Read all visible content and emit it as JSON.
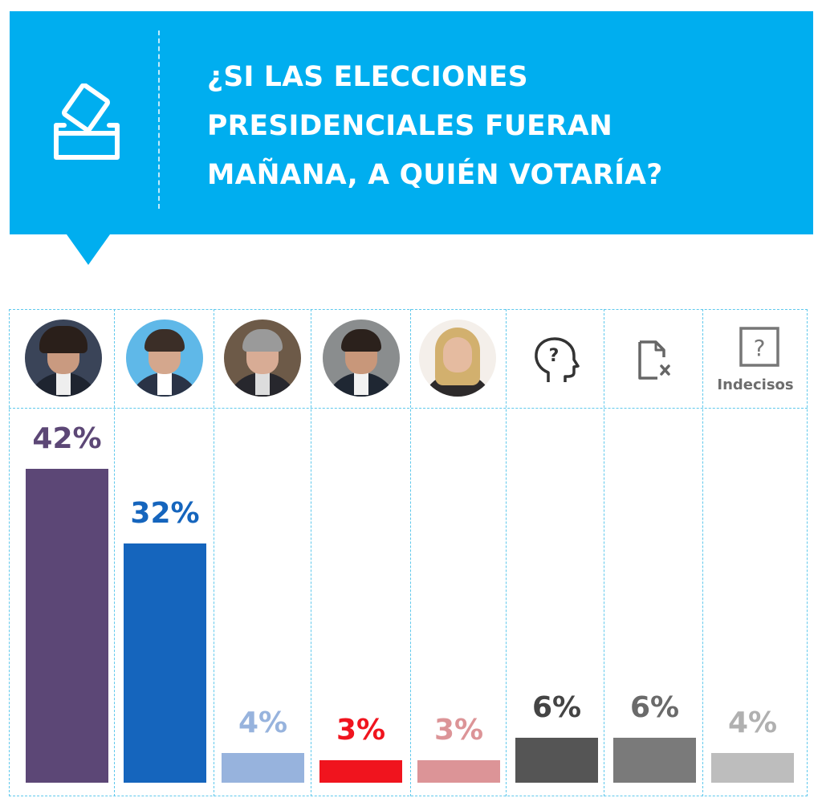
{
  "title_lines": [
    "¿SI LAS ELECCIONES",
    "PRESIDENCIALES FUERAN",
    "MAÑANA, A QUIÉN VOTARÍA?"
  ],
  "colors": {
    "banner": "#00aeef",
    "grid": "#5fc8ec"
  },
  "chart_data": {
    "type": "bar",
    "title": "¿SI LAS ELECCIONES PRESIDENCIALES FUERAN MAÑANA, A QUIÉN VOTARÍA?",
    "ylim": [
      0,
      45
    ],
    "value_labels": [
      "42%",
      "32%",
      "4%",
      "3%",
      "3%",
      "6%",
      "6%",
      "4%"
    ],
    "values": [
      42,
      32,
      4,
      3,
      3,
      6,
      6,
      4
    ],
    "bar_colors": [
      "#5c4776",
      "#1565bd",
      "#97b3dd",
      "#f0141e",
      "#dc9497",
      "#555555",
      "#7a7a7a",
      "#bdbdbd"
    ],
    "label_colors": [
      "#5c4776",
      "#1565bd",
      "#97b3dd",
      "#f0141e",
      "#dc9497",
      "#444444",
      "#6a6a6a",
      "#b0b0b0"
    ],
    "column_headers": [
      {
        "kind": "photo"
      },
      {
        "kind": "photo"
      },
      {
        "kind": "photo"
      },
      {
        "kind": "photo"
      },
      {
        "kind": "photo"
      },
      {
        "kind": "icon",
        "icon": "head-question-icon"
      },
      {
        "kind": "icon",
        "icon": "blank-vote-icon"
      },
      {
        "kind": "icon",
        "icon": "question-box-icon",
        "label": "Indecisos"
      }
    ],
    "grid": true,
    "legend": "none"
  }
}
